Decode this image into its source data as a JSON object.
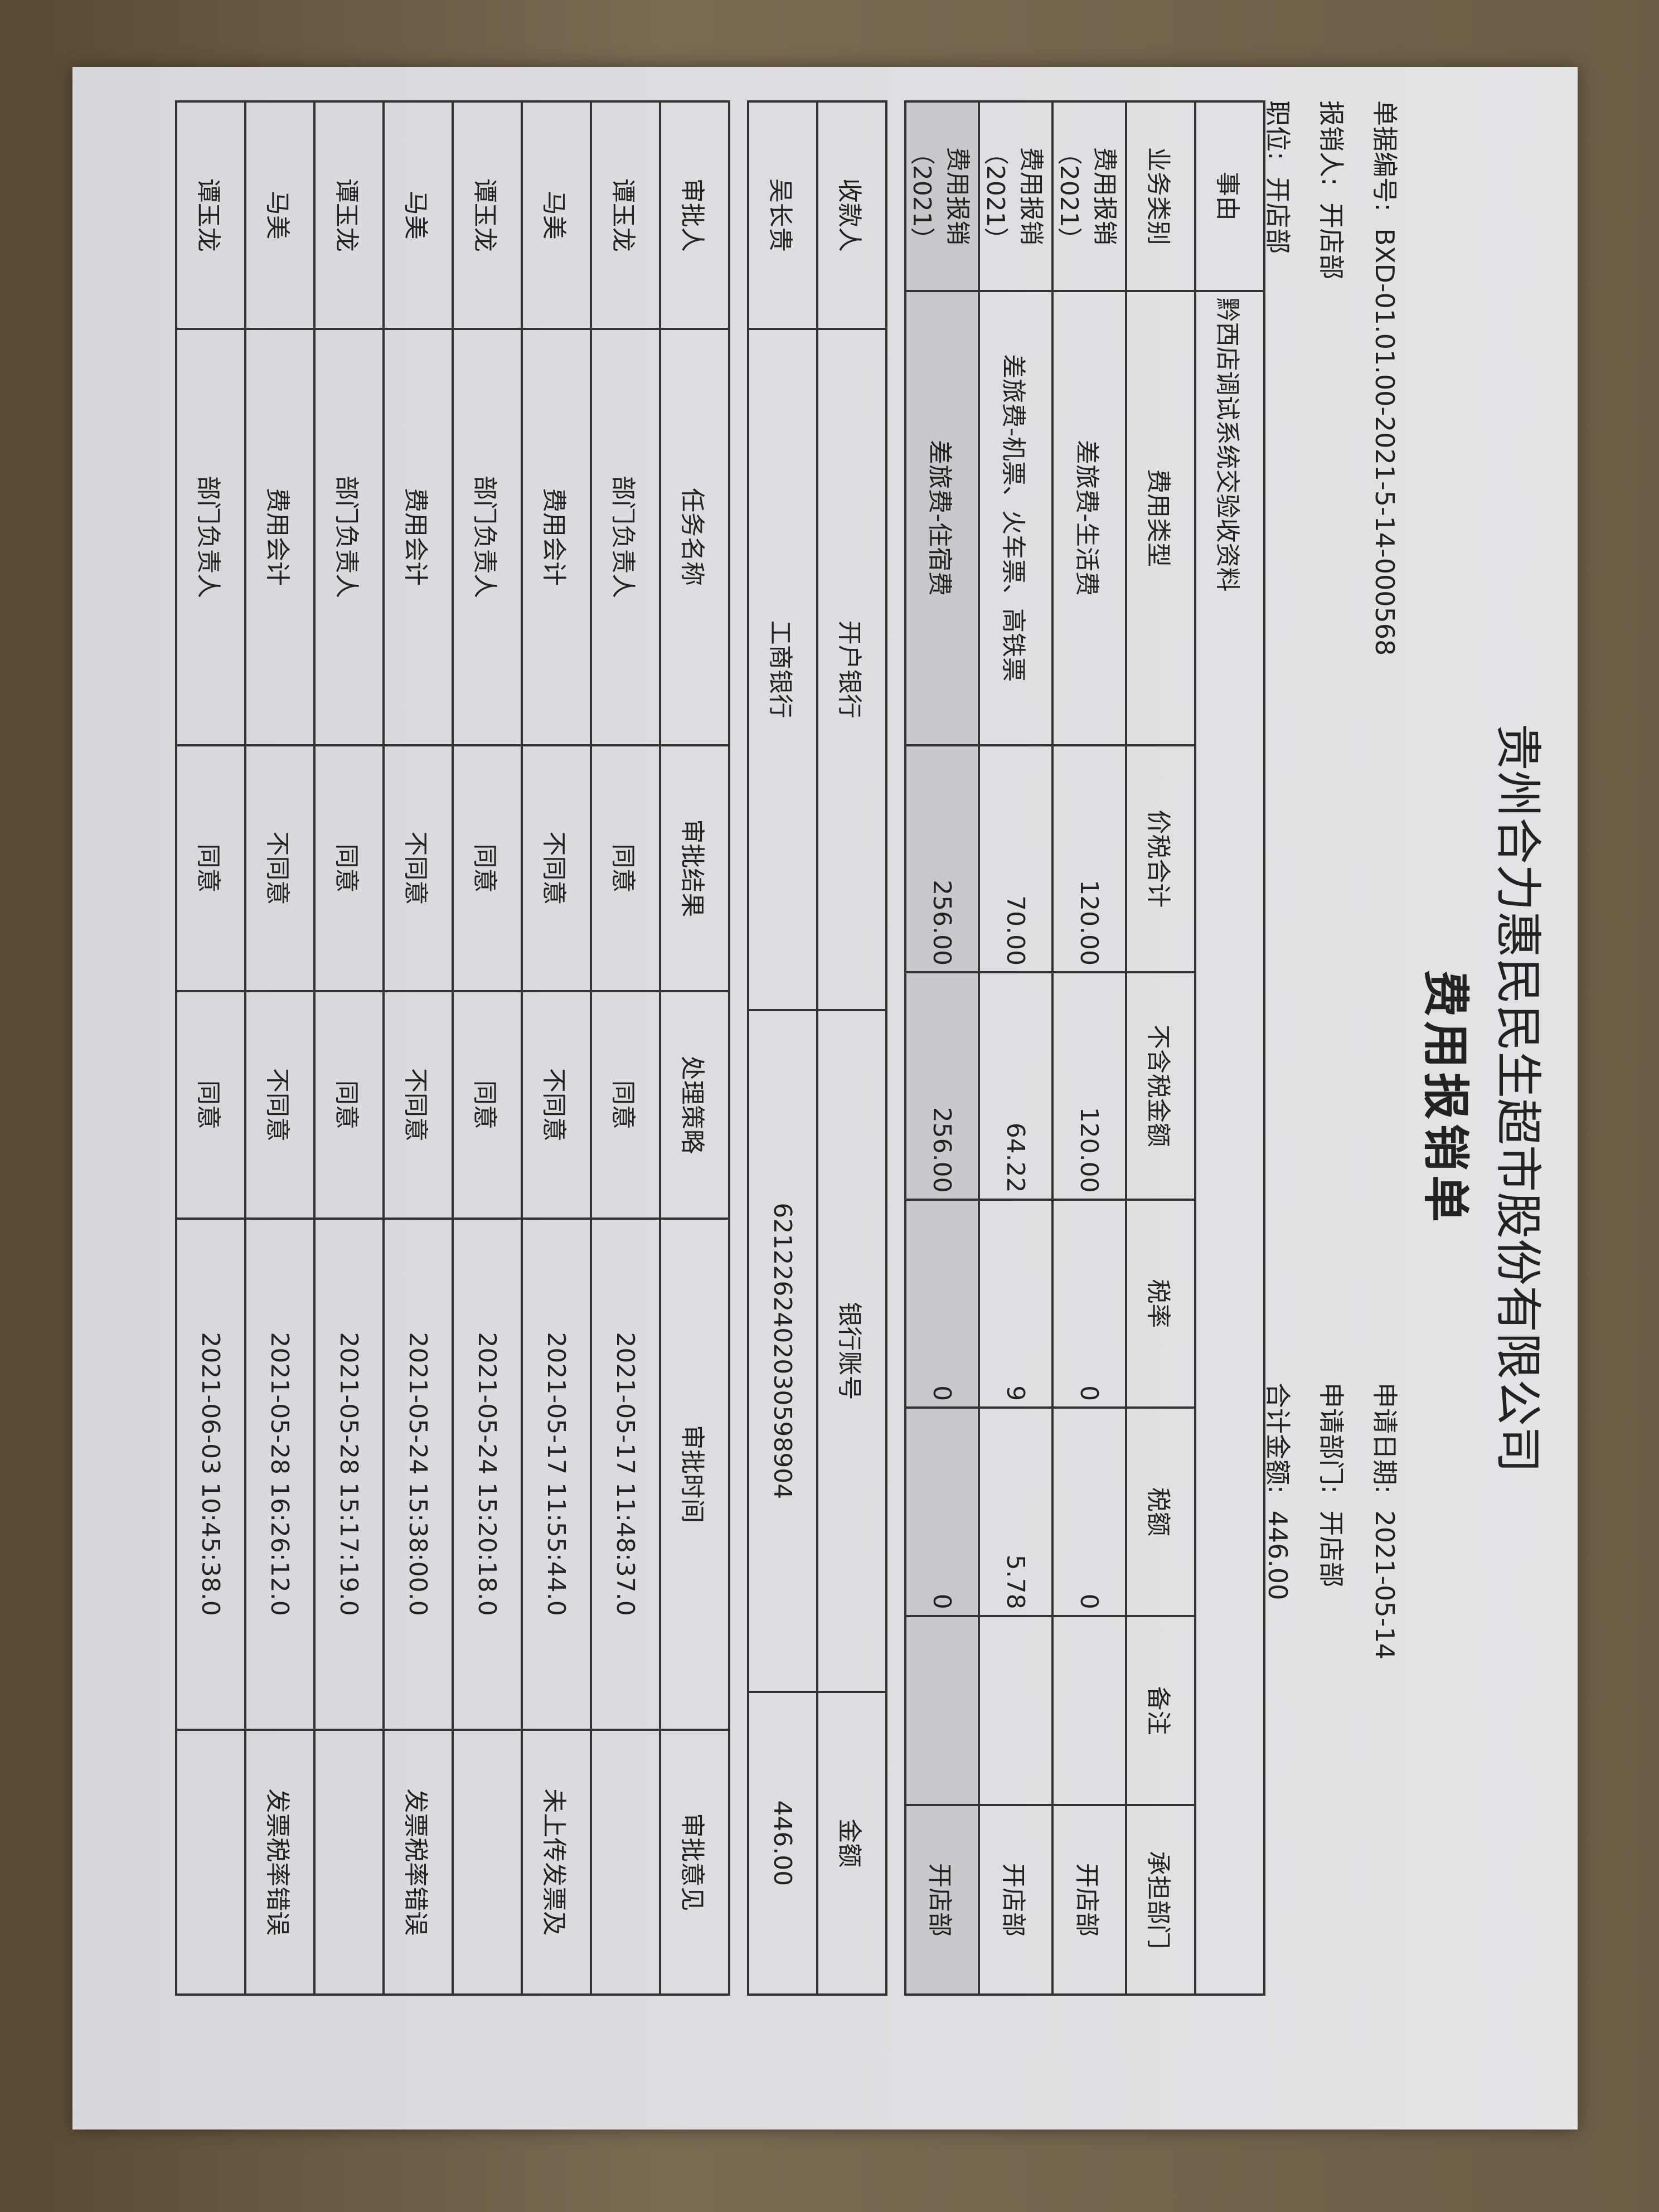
{
  "company": "贵州合力惠民民生超市股份有限公司",
  "title": "费用报销单",
  "fields": [
    {
      "label": "单据编号:",
      "value": "BXD-01.01.00-2021-5-14-000568"
    },
    {
      "label": "申请日期:",
      "value": "2021-05-14"
    },
    {
      "label": "报销人:",
      "value": "开店部"
    },
    {
      "label": "申请部门:",
      "value": "开店部"
    },
    {
      "label": "职位:",
      "value": "开店部"
    },
    {
      "label": "合计金额:",
      "value": "446.00"
    }
  ],
  "expenses": {
    "reason": {
      "label": "事由",
      "value": "黔西店调试系统交验收资料"
    },
    "headers": [
      "业务类别",
      "费用类型",
      "价税合计",
      "不含税金额",
      "税率",
      "税额",
      "备注",
      "承担部门"
    ],
    "rows": [
      [
        "费用报销（2021）",
        "差旅费-生活费",
        "120.00",
        "120.00",
        "0",
        "0",
        null,
        "开店部"
      ],
      [
        "费用报销（2021）",
        "差旅费-机票、火车票、高铁票",
        "70.00",
        "64.22",
        "9",
        "5.78",
        null,
        "开店部"
      ],
      [
        "费用报销（2021）",
        "差旅费-住宿费",
        "256.00",
        "256.00",
        "0",
        "0",
        null,
        "开店部"
      ]
    ]
  },
  "payee": {
    "headers": [
      "收款人",
      "开户银行",
      "银行账号",
      "金额"
    ],
    "rows": [
      [
        "吴长贵",
        "工商银行",
        "6212262402030598904",
        "446.00"
      ]
    ]
  },
  "approvals": {
    "headers": [
      "审批人",
      "任务名称",
      "审批结果",
      "处理策略",
      "审批时间",
      "审批意见"
    ],
    "rows": [
      [
        "谭玉龙",
        "部门负责人",
        "同意",
        "同意",
        "2021-05-17 11:48:37.0",
        null
      ],
      [
        "马美",
        "费用会计",
        "不同意",
        "不同意",
        "2021-05-17 11:55:44.0",
        "未上传发票及"
      ],
      [
        "谭玉龙",
        "部门负责人",
        "同意",
        "同意",
        "2021-05-24 15:20:18.0",
        null
      ],
      [
        "马美",
        "费用会计",
        "不同意",
        "不同意",
        "2021-05-24 15:38:00.0",
        "发票税率错误"
      ],
      [
        "谭玉龙",
        "部门负责人",
        "同意",
        "同意",
        "2021-05-28 15:17:19.0",
        null
      ],
      [
        "马美",
        "费用会计",
        "不同意",
        "不同意",
        "2021-05-28 16:26:12.0",
        "发票税率错误"
      ],
      [
        "谭玉龙",
        "部门负责人",
        "同意",
        "同意",
        "2021-06-03 10:45:38.0",
        null
      ]
    ]
  }
}
